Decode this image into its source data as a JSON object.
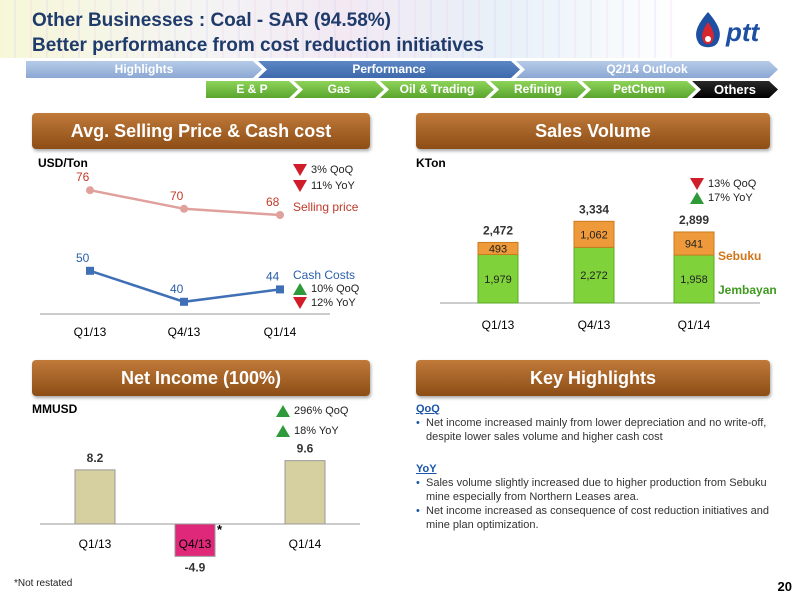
{
  "header": {
    "title_line1": "Other Businesses : Coal - SAR (94.58%)",
    "title_line2": "Better performance from cost reduction initiatives",
    "logo_text": "ptt"
  },
  "nav_row1": [
    {
      "label": "Highlights",
      "active": false
    },
    {
      "label": "Performance",
      "active": true
    },
    {
      "label": "Q2/14 Outlook",
      "active": false
    }
  ],
  "nav_row2": [
    {
      "label": "E & P",
      "active": false
    },
    {
      "label": "Gas",
      "active": false
    },
    {
      "label": "Oil & Trading",
      "active": false
    },
    {
      "label": "Refining",
      "active": false
    },
    {
      "label": "PetChem",
      "active": false
    },
    {
      "label": "Others",
      "active": true
    }
  ],
  "sections": {
    "price_cost": "Avg. Selling Price & Cash cost",
    "sales_volume": "Sales Volume",
    "net_income": "Net Income (100%)",
    "key_highlights": "Key Highlights"
  },
  "price_panel": {
    "unit": "USD/Ton",
    "selling_qoq": "3% QoQ",
    "selling_yoy": "11% YoY",
    "selling_label": "Selling price",
    "cost_label": "Cash Costs",
    "cost_qoq": "10% QoQ",
    "cost_yoy": "12% YoY"
  },
  "volume_panel": {
    "unit": "KTon",
    "qoq": "13% QoQ",
    "yoy": "17% YoY",
    "legend_top": "Sebuku",
    "legend_bottom": "Jembayan"
  },
  "income_panel": {
    "unit": "MMUSD",
    "qoq": "296% QoQ",
    "yoy": "18%  YoY",
    "asterisk": "*"
  },
  "key_highlights": {
    "qoq_heading": "QoQ",
    "qoq_items": [
      "Net income increased mainly from lower depreciation and no write-off, despite lower sales volume and higher cash cost"
    ],
    "yoy_heading": "YoY",
    "yoy_items": [
      "Sales volume slightly increased due to higher production from Sebuku mine especially from Northern Leases area.",
      "Net income increased as consequence of cost reduction initiatives and mine plan optimization."
    ]
  },
  "footer": {
    "note": "*Not restated",
    "page": "20"
  },
  "colors": {
    "selling_line": "#e0a09c",
    "cost_line": "#3f6fb5",
    "jembayan": "#7fd23a",
    "sebuku": "#ee9a3a",
    "income_bar": "#d6cfa0",
    "income_neg": "#e0287a",
    "section_bg": "#a8622a"
  },
  "chart_data": [
    {
      "type": "line",
      "categories": [
        "Q1/13",
        "Q4/13",
        "Q1/14"
      ],
      "series": [
        {
          "name": "Selling price",
          "values": [
            76,
            70,
            68
          ]
        },
        {
          "name": "Cash Costs",
          "values": [
            50,
            40,
            44
          ]
        }
      ],
      "ylabel": "USD/Ton"
    },
    {
      "type": "bar",
      "stacked": true,
      "categories": [
        "Q1/13",
        "Q4/13",
        "Q1/14"
      ],
      "series": [
        {
          "name": "Jembayan",
          "values": [
            "1,979",
            "2,272",
            "1,958"
          ]
        },
        {
          "name": "Sebuku",
          "values": [
            "493",
            "1,062",
            "941"
          ]
        }
      ],
      "totals": [
        "2,472",
        "3,334",
        "2,899"
      ],
      "ylabel": "KTon"
    },
    {
      "type": "bar",
      "categories": [
        "Q1/13",
        "Q4/13",
        "Q1/14"
      ],
      "values": [
        8.2,
        -4.9,
        9.6
      ],
      "labels": [
        "8.2",
        "-4.9",
        "9.6"
      ],
      "ylabel": "MMUSD"
    }
  ]
}
